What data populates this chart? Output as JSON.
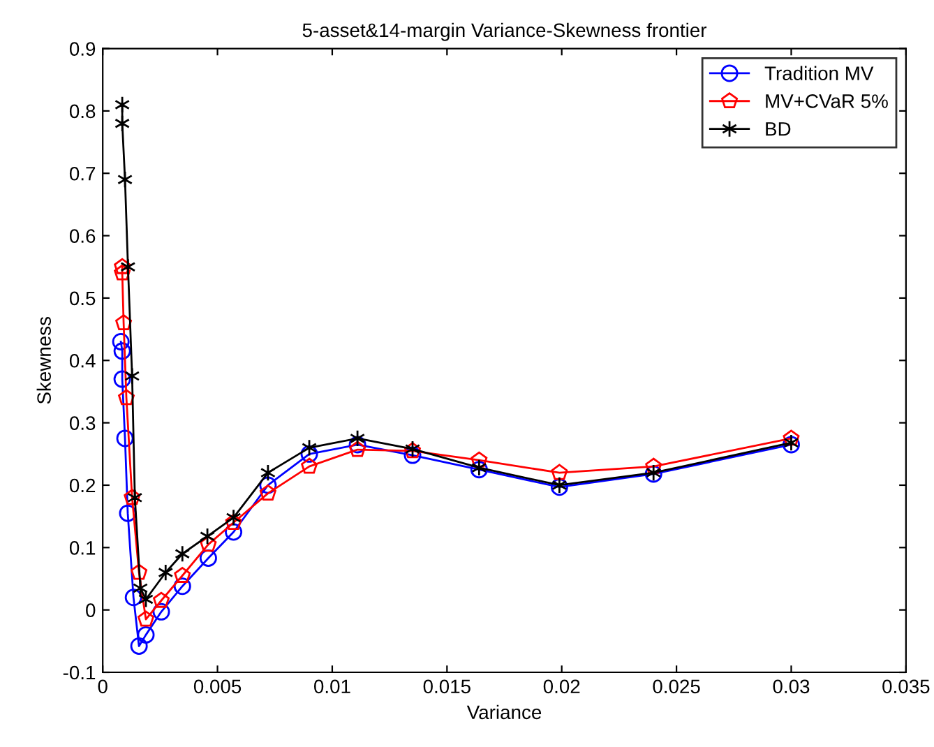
{
  "chart_data": {
    "type": "line",
    "title": "5-asset&14-margin Variance-Skewness frontier",
    "xlabel": "Variance",
    "ylabel": "Skewness",
    "xlim": [
      0,
      0.035
    ],
    "xticks": [
      0,
      0.005,
      0.01,
      0.015,
      0.02,
      0.025,
      0.03,
      0.035
    ],
    "ylim": [
      -0.1,
      0.9
    ],
    "yticks": [
      -0.1,
      0,
      0.1,
      0.2,
      0.3,
      0.4,
      0.5,
      0.6,
      0.7,
      0.8,
      0.9
    ],
    "grid": false,
    "legend": "top right",
    "series": [
      {
        "name": "Tradition MV",
        "color": "#0000ff",
        "marker": "circle",
        "x": [
          0.00079,
          0.00085,
          0.00085,
          0.00097,
          0.00109,
          0.00134,
          0.00158,
          0.00188,
          0.00255,
          0.00347,
          0.0046,
          0.0057,
          0.0072,
          0.009,
          0.0111,
          0.0135,
          0.0164,
          0.0199,
          0.024,
          0.03
        ],
        "values": [
          0.43,
          0.415,
          0.37,
          0.275,
          0.155,
          0.02,
          -0.058,
          -0.04,
          -0.003,
          0.038,
          0.083,
          0.125,
          0.2,
          0.25,
          0.265,
          0.248,
          0.225,
          0.197,
          0.218,
          0.265
        ]
      },
      {
        "name": "MV+CVaR 5%",
        "color": "#ff0000",
        "marker": "star",
        "x": [
          0.00085,
          0.00085,
          0.00091,
          0.00103,
          0.00128,
          0.00158,
          0.00188,
          0.00255,
          0.00347,
          0.0046,
          0.0057,
          0.0072,
          0.009,
          0.0111,
          0.0135,
          0.0164,
          0.0199,
          0.024,
          0.03
        ],
        "values": [
          0.55,
          0.54,
          0.46,
          0.34,
          0.18,
          0.06,
          -0.015,
          0.015,
          0.055,
          0.105,
          0.14,
          0.187,
          0.23,
          0.257,
          0.255,
          0.24,
          0.22,
          0.23,
          0.275
        ]
      },
      {
        "name": "BD",
        "color": "#000000",
        "marker": "cross",
        "x": [
          0.00085,
          0.00085,
          0.00097,
          0.0011,
          0.00128,
          0.0014,
          0.00164,
          0.00188,
          0.00274,
          0.00347,
          0.00456,
          0.0057,
          0.0072,
          0.009,
          0.0111,
          0.0135,
          0.0164,
          0.0199,
          0.024,
          0.03
        ],
        "values": [
          0.81,
          0.78,
          0.69,
          0.55,
          0.375,
          0.18,
          0.035,
          0.017,
          0.06,
          0.09,
          0.118,
          0.148,
          0.22,
          0.26,
          0.275,
          0.258,
          0.228,
          0.2,
          0.22,
          0.268
        ]
      }
    ]
  }
}
